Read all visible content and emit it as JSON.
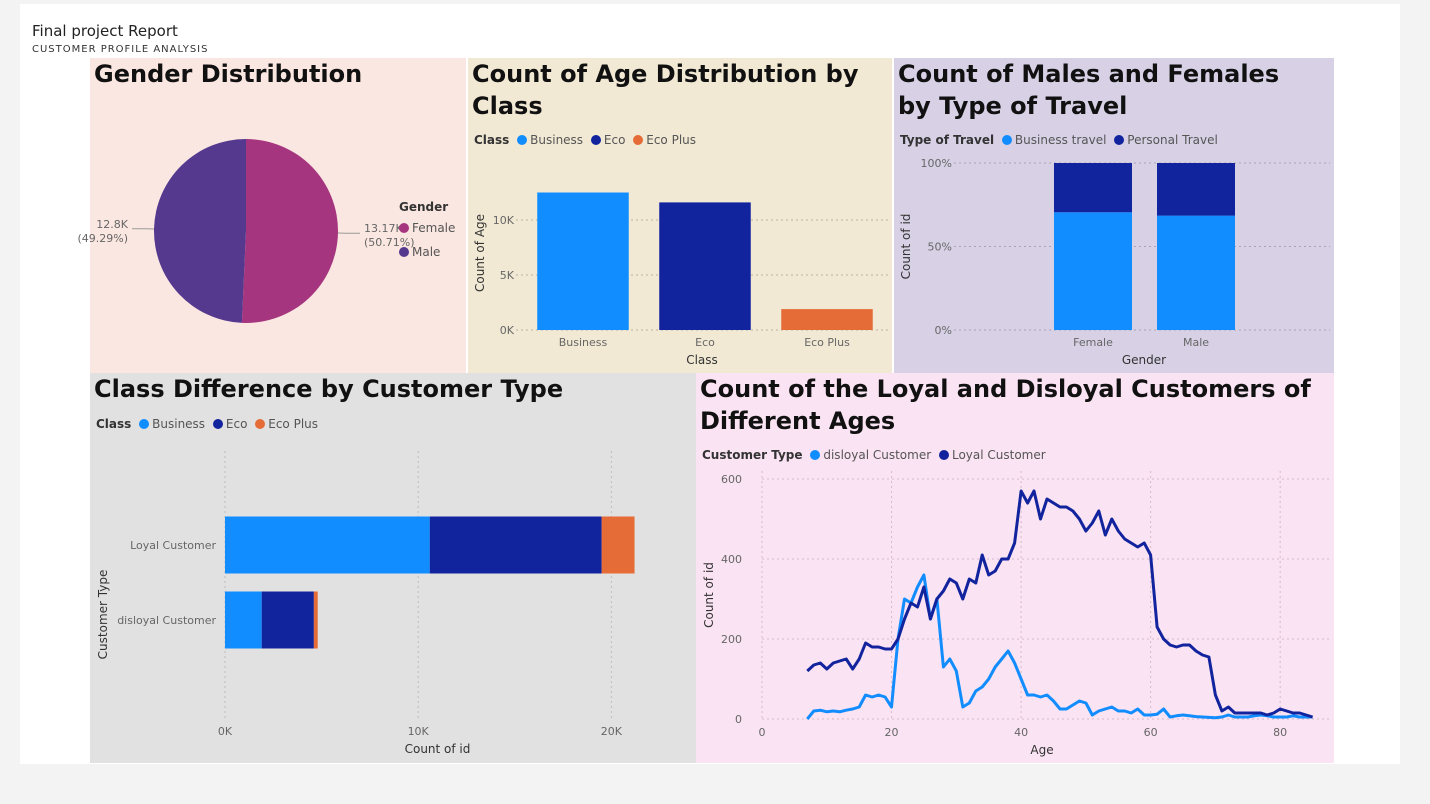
{
  "report": {
    "title": "Final project Report",
    "subtitle": "CUSTOMER PROFILE ANALYSIS"
  },
  "colors": {
    "business": "#118DFF",
    "eco": "#12239E",
    "eco_plus": "#E66C37",
    "female": "#A6357F",
    "male": "#55398E"
  },
  "chart_data": [
    {
      "id": "gender",
      "type": "pie",
      "title": "Gender Distribution",
      "legend_title": "Gender",
      "legend_position": "right",
      "slices": [
        {
          "name": "Female",
          "value": 13170,
          "label": "13.17K",
          "pct_label": "(50.71%)",
          "color": "#A6357F"
        },
        {
          "name": "Male",
          "value": 12800,
          "label": "12.8K",
          "pct_label": "(49.29%)",
          "color": "#55398E"
        }
      ]
    },
    {
      "id": "age_class",
      "type": "bar",
      "title": "Count of Age Distribution by Class",
      "legend_title": "Class",
      "legend_position": "top-left",
      "categories": [
        "Business",
        "Eco",
        "Eco Plus"
      ],
      "values": [
        12500,
        11600,
        1900
      ],
      "colors": [
        "#118DFF",
        "#12239E",
        "#E66C37"
      ],
      "xlabel": "Class",
      "ylabel": "Count of Age",
      "yticks": [
        {
          "v": 0,
          "label": "0K"
        },
        {
          "v": 5000,
          "label": "5K"
        },
        {
          "v": 10000,
          "label": "10K"
        }
      ],
      "ylim": [
        0,
        14000
      ],
      "grid": true
    },
    {
      "id": "gender_travel",
      "type": "bar",
      "stacked": true,
      "title": "Count of Males and Females by Type of Travel",
      "legend_title": "Type of Travel",
      "legend_position": "top-left",
      "categories": [
        "Female",
        "Male"
      ],
      "series": [
        {
          "name": "Business travel",
          "values": [
            70.5,
            68.5
          ],
          "color": "#118DFF"
        },
        {
          "name": "Personal Travel",
          "values": [
            29.5,
            31.5
          ],
          "color": "#12239E"
        }
      ],
      "xlabel": "Gender",
      "ylabel": "Count of id",
      "yticks": [
        {
          "v": 0,
          "label": "0%"
        },
        {
          "v": 50,
          "label": "50%"
        },
        {
          "v": 100,
          "label": "100%"
        }
      ],
      "ylim": [
        0,
        100
      ],
      "grid": true
    },
    {
      "id": "class_customer",
      "type": "bar",
      "orientation": "horizontal",
      "stacked": true,
      "title": "Class Difference by Customer Type",
      "legend_title": "Class",
      "legend_position": "top-left",
      "categories": [
        "Loyal Customer",
        "disloyal Customer"
      ],
      "series": [
        {
          "name": "Business",
          "values": [
            10600,
            1900
          ],
          "color": "#118DFF"
        },
        {
          "name": "Eco",
          "values": [
            8900,
            2700
          ],
          "color": "#12239E"
        },
        {
          "name": "Eco Plus",
          "values": [
            1700,
            200
          ],
          "color": "#E66C37"
        }
      ],
      "xlabel": "Count of id",
      "ylabel": "Customer Type",
      "xticks": [
        {
          "v": 0,
          "label": "0K"
        },
        {
          "v": 10000,
          "label": "10K"
        },
        {
          "v": 20000,
          "label": "20K"
        }
      ],
      "xlim": [
        0,
        22000
      ],
      "grid": true
    },
    {
      "id": "loyal_age",
      "type": "line",
      "title": "Count of the Loyal and Disloyal Customers of Different Ages",
      "legend_title": "Customer Type",
      "legend_position": "top-left",
      "xlabel": "Age",
      "ylabel": "Count of id",
      "xlim": [
        0,
        88
      ],
      "ylim": [
        0,
        620
      ],
      "xticks": [
        0,
        20,
        40,
        60,
        80
      ],
      "yticks": [
        0,
        200,
        400,
        600
      ],
      "grid": true,
      "series": [
        {
          "name": "disloyal Customer",
          "color": "#118DFF",
          "x": [
            7,
            8,
            9,
            10,
            11,
            12,
            13,
            14,
            15,
            16,
            17,
            18,
            19,
            20,
            21,
            22,
            23,
            24,
            25,
            26,
            27,
            28,
            29,
            30,
            31,
            32,
            33,
            34,
            35,
            36,
            37,
            38,
            39,
            40,
            41,
            42,
            43,
            44,
            45,
            46,
            47,
            48,
            49,
            50,
            51,
            52,
            53,
            54,
            55,
            56,
            57,
            58,
            59,
            60,
            61,
            62,
            63,
            64,
            65,
            66,
            67,
            68,
            69,
            70,
            71,
            72,
            73,
            74,
            75,
            76,
            77,
            78,
            79,
            80,
            81,
            82,
            83,
            84,
            85
          ],
          "y": [
            0,
            20,
            22,
            18,
            20,
            18,
            22,
            25,
            30,
            60,
            55,
            60,
            55,
            30,
            200,
            300,
            290,
            330,
            360,
            250,
            300,
            130,
            150,
            120,
            30,
            40,
            70,
            80,
            100,
            130,
            150,
            170,
            140,
            100,
            60,
            60,
            55,
            60,
            45,
            25,
            25,
            35,
            45,
            40,
            10,
            20,
            25,
            30,
            20,
            20,
            15,
            25,
            10,
            10,
            12,
            25,
            5,
            8,
            10,
            8,
            6,
            5,
            4,
            3,
            5,
            10,
            5,
            5,
            5,
            8,
            10,
            8,
            5,
            5,
            5,
            8,
            5,
            5,
            5
          ]
        },
        {
          "name": "Loyal Customer",
          "color": "#12239E",
          "x": [
            7,
            8,
            9,
            10,
            11,
            12,
            13,
            14,
            15,
            16,
            17,
            18,
            19,
            20,
            21,
            22,
            23,
            24,
            25,
            26,
            27,
            28,
            29,
            30,
            31,
            32,
            33,
            34,
            35,
            36,
            37,
            38,
            39,
            40,
            41,
            42,
            43,
            44,
            45,
            46,
            47,
            48,
            49,
            50,
            51,
            52,
            53,
            54,
            55,
            56,
            57,
            58,
            59,
            60,
            61,
            62,
            63,
            64,
            65,
            66,
            67,
            68,
            69,
            70,
            71,
            72,
            73,
            74,
            75,
            76,
            77,
            78,
            79,
            80,
            81,
            82,
            83,
            84,
            85
          ],
          "y": [
            120,
            135,
            140,
            125,
            140,
            145,
            150,
            125,
            150,
            190,
            180,
            180,
            175,
            175,
            200,
            250,
            290,
            280,
            330,
            250,
            300,
            320,
            350,
            340,
            300,
            350,
            340,
            410,
            360,
            370,
            400,
            400,
            440,
            570,
            540,
            570,
            500,
            550,
            540,
            530,
            530,
            520,
            500,
            470,
            490,
            520,
            460,
            500,
            470,
            450,
            440,
            430,
            440,
            410,
            230,
            200,
            185,
            180,
            185,
            185,
            170,
            160,
            155,
            60,
            20,
            30,
            15,
            15,
            15,
            15,
            15,
            10,
            15,
            25,
            20,
            15,
            15,
            10,
            5
          ]
        }
      ]
    }
  ]
}
